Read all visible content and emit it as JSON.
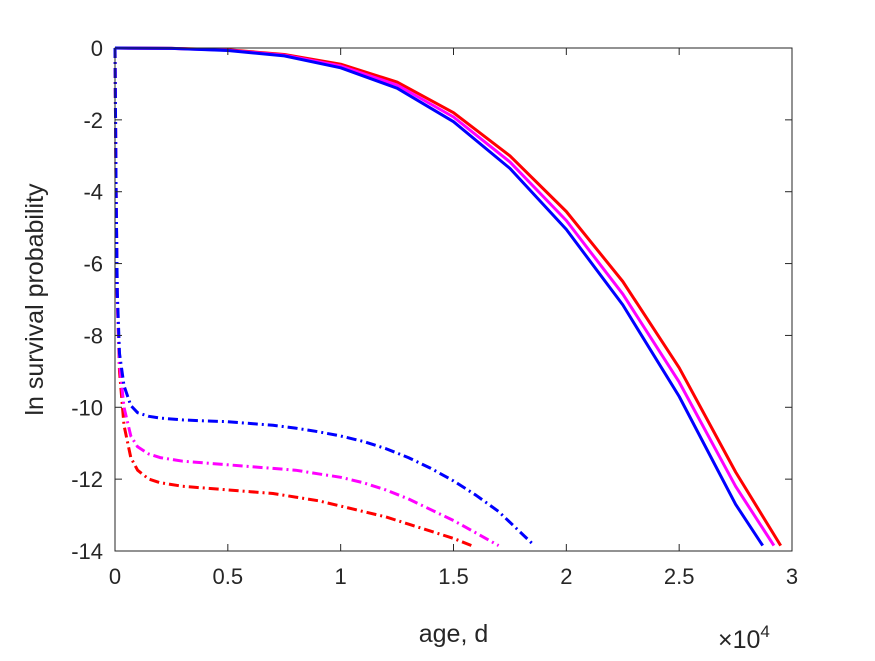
{
  "chart_data": {
    "type": "line",
    "title": "",
    "xlabel": "age, d",
    "ylabel": "ln survival probability",
    "x_multiplier_label": "×10",
    "x_multiplier_exponent": "4",
    "xlim": [
      0,
      30000
    ],
    "ylim": [
      -14,
      0
    ],
    "xticks": [
      0,
      5000,
      10000,
      15000,
      20000,
      25000,
      30000
    ],
    "xtick_labels": [
      "0",
      "0.5",
      "1",
      "1.5",
      "2",
      "2.5",
      "3"
    ],
    "yticks": [
      0,
      -2,
      -4,
      -6,
      -8,
      -10,
      -12,
      -14
    ],
    "ytick_labels": [
      "0",
      "-2",
      "-4",
      "-6",
      "-8",
      "-10",
      "-12",
      "-14"
    ],
    "grid": false,
    "legend": "none",
    "series": [
      {
        "color": "#ff0000",
        "style": "solid",
        "x": [
          0,
          2500,
          5000,
          7500,
          10000,
          12500,
          15000,
          17500,
          20000,
          22500,
          25000,
          27500,
          29500
        ],
        "y": [
          0,
          -0.01,
          -0.05,
          -0.18,
          -0.45,
          -0.95,
          -1.8,
          -3.0,
          -4.55,
          -6.5,
          -8.9,
          -11.8,
          -13.85
        ]
      },
      {
        "color": "#ff00ff",
        "style": "solid",
        "x": [
          0,
          2500,
          5000,
          7500,
          10000,
          12500,
          15000,
          17500,
          20000,
          22500,
          25000,
          27500,
          29200
        ],
        "y": [
          0,
          -0.01,
          -0.06,
          -0.2,
          -0.5,
          -1.03,
          -1.92,
          -3.17,
          -4.8,
          -6.85,
          -9.3,
          -12.2,
          -13.85
        ]
      },
      {
        "color": "#0000ff",
        "style": "solid",
        "x": [
          0,
          2500,
          5000,
          7500,
          10000,
          12500,
          15000,
          17500,
          20000,
          22500,
          25000,
          27500,
          28700
        ],
        "y": [
          0,
          -0.01,
          -0.07,
          -0.22,
          -0.55,
          -1.12,
          -2.05,
          -3.35,
          -5.05,
          -7.15,
          -9.7,
          -12.7,
          -13.85
        ]
      },
      {
        "color": "#ff0000",
        "style": "dashdot",
        "x": [
          0,
          50,
          100,
          200,
          400,
          700,
          1000,
          1500,
          2000,
          3000,
          4000,
          5000,
          6000,
          7000,
          8000,
          9000,
          10000,
          11000,
          12000,
          13000,
          14000,
          15000,
          15800
        ],
        "y": [
          0,
          -4,
          -7,
          -9,
          -10.5,
          -11.4,
          -11.75,
          -12.0,
          -12.1,
          -12.2,
          -12.25,
          -12.3,
          -12.35,
          -12.4,
          -12.5,
          -12.6,
          -12.75,
          -12.9,
          -13.05,
          -13.25,
          -13.45,
          -13.65,
          -13.85
        ]
      },
      {
        "color": "#ff00ff",
        "style": "dashdot",
        "x": [
          0,
          50,
          100,
          200,
          400,
          700,
          1000,
          1500,
          2000,
          3000,
          4000,
          5000,
          6000,
          7000,
          8000,
          9000,
          10000,
          11000,
          12000,
          13000,
          14000,
          15000,
          16000,
          17000
        ],
        "y": [
          0,
          -4,
          -7,
          -8.8,
          -10,
          -10.8,
          -11.1,
          -11.3,
          -11.4,
          -11.5,
          -11.55,
          -11.6,
          -11.65,
          -11.7,
          -11.75,
          -11.85,
          -11.95,
          -12.1,
          -12.3,
          -12.55,
          -12.85,
          -13.15,
          -13.5,
          -13.85
        ]
      },
      {
        "color": "#0000ff",
        "style": "dashdot",
        "x": [
          0,
          50,
          100,
          200,
          400,
          700,
          1000,
          1500,
          2000,
          3000,
          4000,
          5000,
          6000,
          7000,
          8000,
          9000,
          10000,
          11000,
          12000,
          13000,
          14000,
          15000,
          16000,
          17000,
          18500
        ],
        "y": [
          0,
          -4,
          -6.8,
          -8.5,
          -9.4,
          -9.95,
          -10.15,
          -10.25,
          -10.3,
          -10.35,
          -10.38,
          -10.4,
          -10.45,
          -10.5,
          -10.58,
          -10.68,
          -10.8,
          -10.95,
          -11.15,
          -11.4,
          -11.7,
          -12.05,
          -12.45,
          -12.9,
          -13.8
        ]
      }
    ]
  }
}
